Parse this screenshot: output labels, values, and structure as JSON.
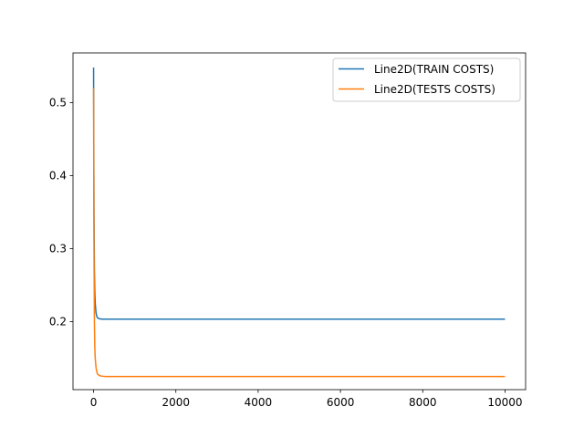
{
  "chart_data": {
    "type": "line",
    "title": "",
    "xlabel": "",
    "ylabel": "",
    "xlim": [
      -500,
      10500
    ],
    "ylim": [
      0.107,
      0.568
    ],
    "xticks": [
      0,
      2000,
      4000,
      6000,
      8000,
      10000
    ],
    "xtick_labels": [
      "0",
      "2000",
      "4000",
      "6000",
      "8000",
      "10000"
    ],
    "yticks": [
      0.2,
      0.3,
      0.4,
      0.5
    ],
    "ytick_labels": [
      "0.2",
      "0.3",
      "0.4",
      "0.5"
    ],
    "grid": false,
    "legend_position": "top-right",
    "series": [
      {
        "name": "Line2D(TRAIN COSTS)",
        "color": "#1f77b4",
        "x": [
          0,
          5,
          10,
          20,
          30,
          40,
          60,
          80,
          100,
          150,
          200,
          300,
          500,
          1000,
          2000,
          4000,
          6000,
          8000,
          10000
        ],
        "y": [
          0.548,
          0.45,
          0.35,
          0.27,
          0.24,
          0.225,
          0.212,
          0.207,
          0.205,
          0.204,
          0.2035,
          0.2035,
          0.2035,
          0.2035,
          0.2035,
          0.2035,
          0.2035,
          0.2035,
          0.2035
        ]
      },
      {
        "name": "Line2D(TESTS COSTS)",
        "color": "#ff7f0e",
        "x": [
          0,
          5,
          10,
          20,
          30,
          40,
          60,
          80,
          100,
          150,
          200,
          300,
          500,
          1000,
          2000,
          4000,
          6000,
          8000,
          10000
        ],
        "y": [
          0.52,
          0.4,
          0.3,
          0.2,
          0.165,
          0.15,
          0.137,
          0.131,
          0.128,
          0.126,
          0.1255,
          0.125,
          0.125,
          0.125,
          0.125,
          0.125,
          0.125,
          0.125,
          0.125
        ]
      }
    ]
  }
}
